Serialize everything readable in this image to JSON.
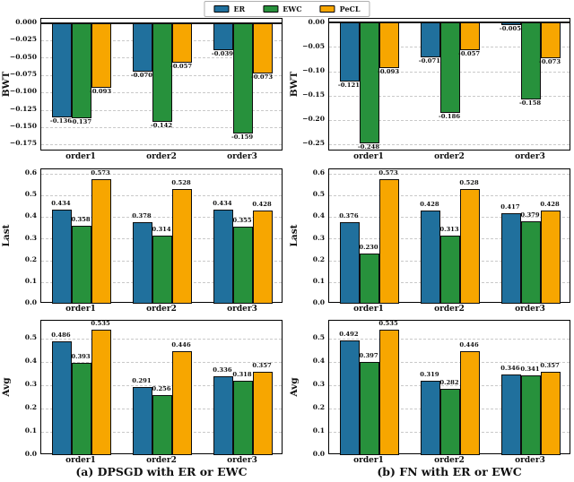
{
  "colors": {
    "ER": "#20709d",
    "EWC": "#27913c",
    "PeCL": "#f7a600",
    "edge": "#0d0d0d"
  },
  "legend": {
    "items": [
      {
        "label": "ER",
        "color": "#20709d"
      },
      {
        "label": "EWC",
        "color": "#27913c"
      },
      {
        "label": "PeCL",
        "color": "#f7a600"
      }
    ]
  },
  "captions": {
    "a": "(a) DPSGD with ER or EWC",
    "b": "(b) FN with ER or EWC"
  },
  "chart_data": [
    {
      "id": "bwt-dpsgd",
      "type": "bar",
      "ylabel": "BWT",
      "categories": [
        "order1",
        "order2",
        "order3"
      ],
      "series": [
        {
          "name": "ER",
          "values": [
            -0.136,
            -0.07,
            -0.039
          ]
        },
        {
          "name": "EWC",
          "values": [
            -0.137,
            -0.142,
            -0.159
          ]
        },
        {
          "name": "PeCL",
          "values": [
            -0.093,
            -0.057,
            -0.073
          ]
        }
      ],
      "ylim": [
        -0.185,
        0.006
      ],
      "yticks": [
        0,
        -0.025,
        -0.05,
        -0.075,
        -0.1,
        -0.125,
        -0.15,
        -0.175
      ],
      "ytick_labels": [
        "0.000",
        "−0.025",
        "−0.050",
        "−0.075",
        "−0.100",
        "−0.125",
        "−0.150",
        "−0.175"
      ],
      "zero_line": true,
      "grid": true,
      "legend_position": "top-center-shared"
    },
    {
      "id": "bwt-fn",
      "type": "bar",
      "ylabel": "BWT",
      "categories": [
        "order1",
        "order2",
        "order3"
      ],
      "series": [
        {
          "name": "ER",
          "values": [
            -0.121,
            -0.071,
            -0.005
          ]
        },
        {
          "name": "EWC",
          "values": [
            -0.248,
            -0.186,
            -0.158
          ]
        },
        {
          "name": "PeCL",
          "values": [
            -0.093,
            -0.057,
            -0.073
          ]
        }
      ],
      "ylim": [
        -0.265,
        0.008
      ],
      "yticks": [
        0,
        -0.05,
        -0.1,
        -0.15,
        -0.2,
        -0.25
      ],
      "ytick_labels": [
        "0.00",
        "−0.05",
        "−0.10",
        "−0.15",
        "−0.20",
        "−0.25"
      ],
      "zero_line": true,
      "grid": true
    },
    {
      "id": "last-dpsgd",
      "type": "bar",
      "ylabel": "Last",
      "categories": [
        "order1",
        "order2",
        "order3"
      ],
      "series": [
        {
          "name": "ER",
          "values": [
            0.434,
            0.378,
            0.434
          ]
        },
        {
          "name": "EWC",
          "values": [
            0.358,
            0.314,
            0.355
          ]
        },
        {
          "name": "PeCL",
          "values": [
            0.573,
            0.528,
            0.428
          ]
        }
      ],
      "ylim": [
        0,
        0.62
      ],
      "yticks": [
        0,
        0.1,
        0.2,
        0.3,
        0.4,
        0.5,
        0.6
      ],
      "ytick_labels": [
        "0.0",
        "0.1",
        "0.2",
        "0.3",
        "0.4",
        "0.5",
        "0.6"
      ],
      "zero_line": false,
      "grid": true
    },
    {
      "id": "last-fn",
      "type": "bar",
      "ylabel": "Last",
      "categories": [
        "order1",
        "order2",
        "order3"
      ],
      "series": [
        {
          "name": "ER",
          "values": [
            0.376,
            0.428,
            0.417
          ]
        },
        {
          "name": "EWC",
          "values": [
            0.23,
            0.313,
            0.379
          ]
        },
        {
          "name": "PeCL",
          "values": [
            0.573,
            0.528,
            0.428
          ]
        }
      ],
      "ylim": [
        0,
        0.62
      ],
      "yticks": [
        0,
        0.1,
        0.2,
        0.3,
        0.4,
        0.5,
        0.6
      ],
      "ytick_labels": [
        "0.0",
        "0.1",
        "0.2",
        "0.3",
        "0.4",
        "0.5",
        "0.6"
      ],
      "zero_line": false,
      "grid": true
    },
    {
      "id": "avg-dpsgd",
      "type": "bar",
      "ylabel": "Avg",
      "categories": [
        "order1",
        "order2",
        "order3"
      ],
      "series": [
        {
          "name": "ER",
          "values": [
            0.486,
            0.291,
            0.336
          ]
        },
        {
          "name": "EWC",
          "values": [
            0.393,
            0.256,
            0.318
          ]
        },
        {
          "name": "PeCL",
          "values": [
            0.535,
            0.446,
            0.357
          ]
        }
      ],
      "ylim": [
        0,
        0.575
      ],
      "yticks": [
        0,
        0.1,
        0.2,
        0.3,
        0.4,
        0.5
      ],
      "ytick_labels": [
        "0.0",
        "0.1",
        "0.2",
        "0.3",
        "0.4",
        "0.5"
      ],
      "zero_line": false,
      "grid": true
    },
    {
      "id": "avg-fn",
      "type": "bar",
      "ylabel": "Avg",
      "categories": [
        "order1",
        "order2",
        "order3"
      ],
      "series": [
        {
          "name": "ER",
          "values": [
            0.492,
            0.319,
            0.346
          ]
        },
        {
          "name": "EWC",
          "values": [
            0.397,
            0.282,
            0.341
          ]
        },
        {
          "name": "PeCL",
          "values": [
            0.535,
            0.446,
            0.357
          ]
        }
      ],
      "ylim": [
        0,
        0.575
      ],
      "yticks": [
        0,
        0.1,
        0.2,
        0.3,
        0.4,
        0.5
      ],
      "ytick_labels": [
        "0.0",
        "0.1",
        "0.2",
        "0.3",
        "0.4",
        "0.5"
      ],
      "zero_line": false,
      "grid": true
    }
  ]
}
